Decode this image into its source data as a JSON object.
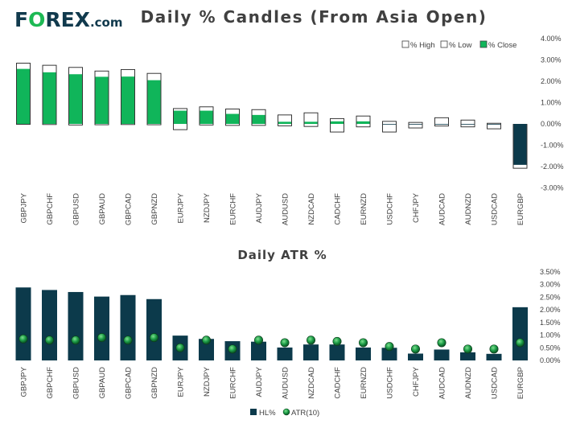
{
  "brand": {
    "logo_pre": "F",
    "logo_post": "REX",
    "logo_suffix": ".com",
    "color_primary": "#113a4d",
    "color_accent": "#1db954"
  },
  "colors": {
    "close": "#10b55a",
    "hl": "#0c3a4b",
    "atr": "#1a9a45"
  },
  "chart_data": [
    {
      "type": "bar",
      "title": "Daily % Candles (From Asia Open)",
      "legend_position": "top-right",
      "legend": [
        "% High",
        "% Low",
        "% Close"
      ],
      "ylim": [
        -3,
        4
      ],
      "yticks": [
        "4.00%",
        "3.00%",
        "2.00%",
        "1.00%",
        "0.00%",
        "-1.00%",
        "-2.00%",
        "-3.00%"
      ],
      "categories": [
        "GBPJPY",
        "GBPCHF",
        "GBPUSD",
        "GBPAUD",
        "GBPCAD",
        "GBPNZD",
        "EURJPY",
        "NZDJPY",
        "EURCHF",
        "AUDJPY",
        "AUDUSD",
        "NZDCAD",
        "CADCHF",
        "EURNZD",
        "USDCHF",
        "CHFJPY",
        "AUDCAD",
        "AUDNZD",
        "USDCAD",
        "EURGBP"
      ],
      "series": [
        {
          "name": "% High",
          "values": [
            2.85,
            2.75,
            2.65,
            2.48,
            2.55,
            2.37,
            0.72,
            0.8,
            0.7,
            0.67,
            0.42,
            0.52,
            0.25,
            0.37,
            0.12,
            0.07,
            0.29,
            0.18,
            0.03,
            -0.02
          ]
        },
        {
          "name": "% Low",
          "values": [
            -0.02,
            -0.03,
            -0.05,
            -0.04,
            -0.03,
            -0.04,
            -0.27,
            -0.05,
            -0.07,
            -0.07,
            -0.09,
            -0.12,
            -0.38,
            -0.14,
            -0.38,
            -0.19,
            -0.1,
            -0.14,
            -0.23,
            -2.08
          ]
        },
        {
          "name": "% Close",
          "values": [
            2.58,
            2.42,
            2.33,
            2.21,
            2.22,
            2.05,
            0.62,
            0.62,
            0.47,
            0.42,
            0.1,
            0.1,
            0.12,
            0.12,
            -0.03,
            -0.02,
            -0.03,
            -0.03,
            -0.02,
            -1.92
          ]
        }
      ]
    },
    {
      "type": "bar",
      "title": "Daily ATR %",
      "legend_position": "bottom",
      "legend": [
        "HL%",
        "ATR(10)"
      ],
      "ylim": [
        0,
        3.5
      ],
      "yticks": [
        "3.50%",
        "3.00%",
        "2.50%",
        "2.00%",
        "1.50%",
        "1.00%",
        "0.50%",
        "0.00%"
      ],
      "categories": [
        "GBPJPY",
        "GBPCHF",
        "GBPUSD",
        "GBPAUD",
        "GBPCAD",
        "GBPNZD",
        "EURJPY",
        "NZDJPY",
        "EURCHF",
        "AUDJPY",
        "AUDUSD",
        "NZDCAD",
        "CADCHF",
        "EURNZD",
        "USDCHF",
        "CHFJPY",
        "AUDCAD",
        "AUDNZD",
        "USDCAD",
        "EURGBP"
      ],
      "series": [
        {
          "name": "HL%",
          "values": [
            2.88,
            2.78,
            2.7,
            2.52,
            2.58,
            2.42,
            0.98,
            0.85,
            0.76,
            0.74,
            0.51,
            0.63,
            0.63,
            0.51,
            0.5,
            0.27,
            0.43,
            0.32,
            0.26,
            2.1
          ]
        },
        {
          "name": "ATR(10)",
          "values": [
            0.85,
            0.8,
            0.8,
            0.9,
            0.8,
            0.9,
            0.5,
            0.8,
            0.45,
            0.8,
            0.7,
            0.8,
            0.75,
            0.7,
            0.55,
            0.45,
            0.7,
            0.45,
            0.45,
            0.7
          ]
        }
      ]
    }
  ]
}
